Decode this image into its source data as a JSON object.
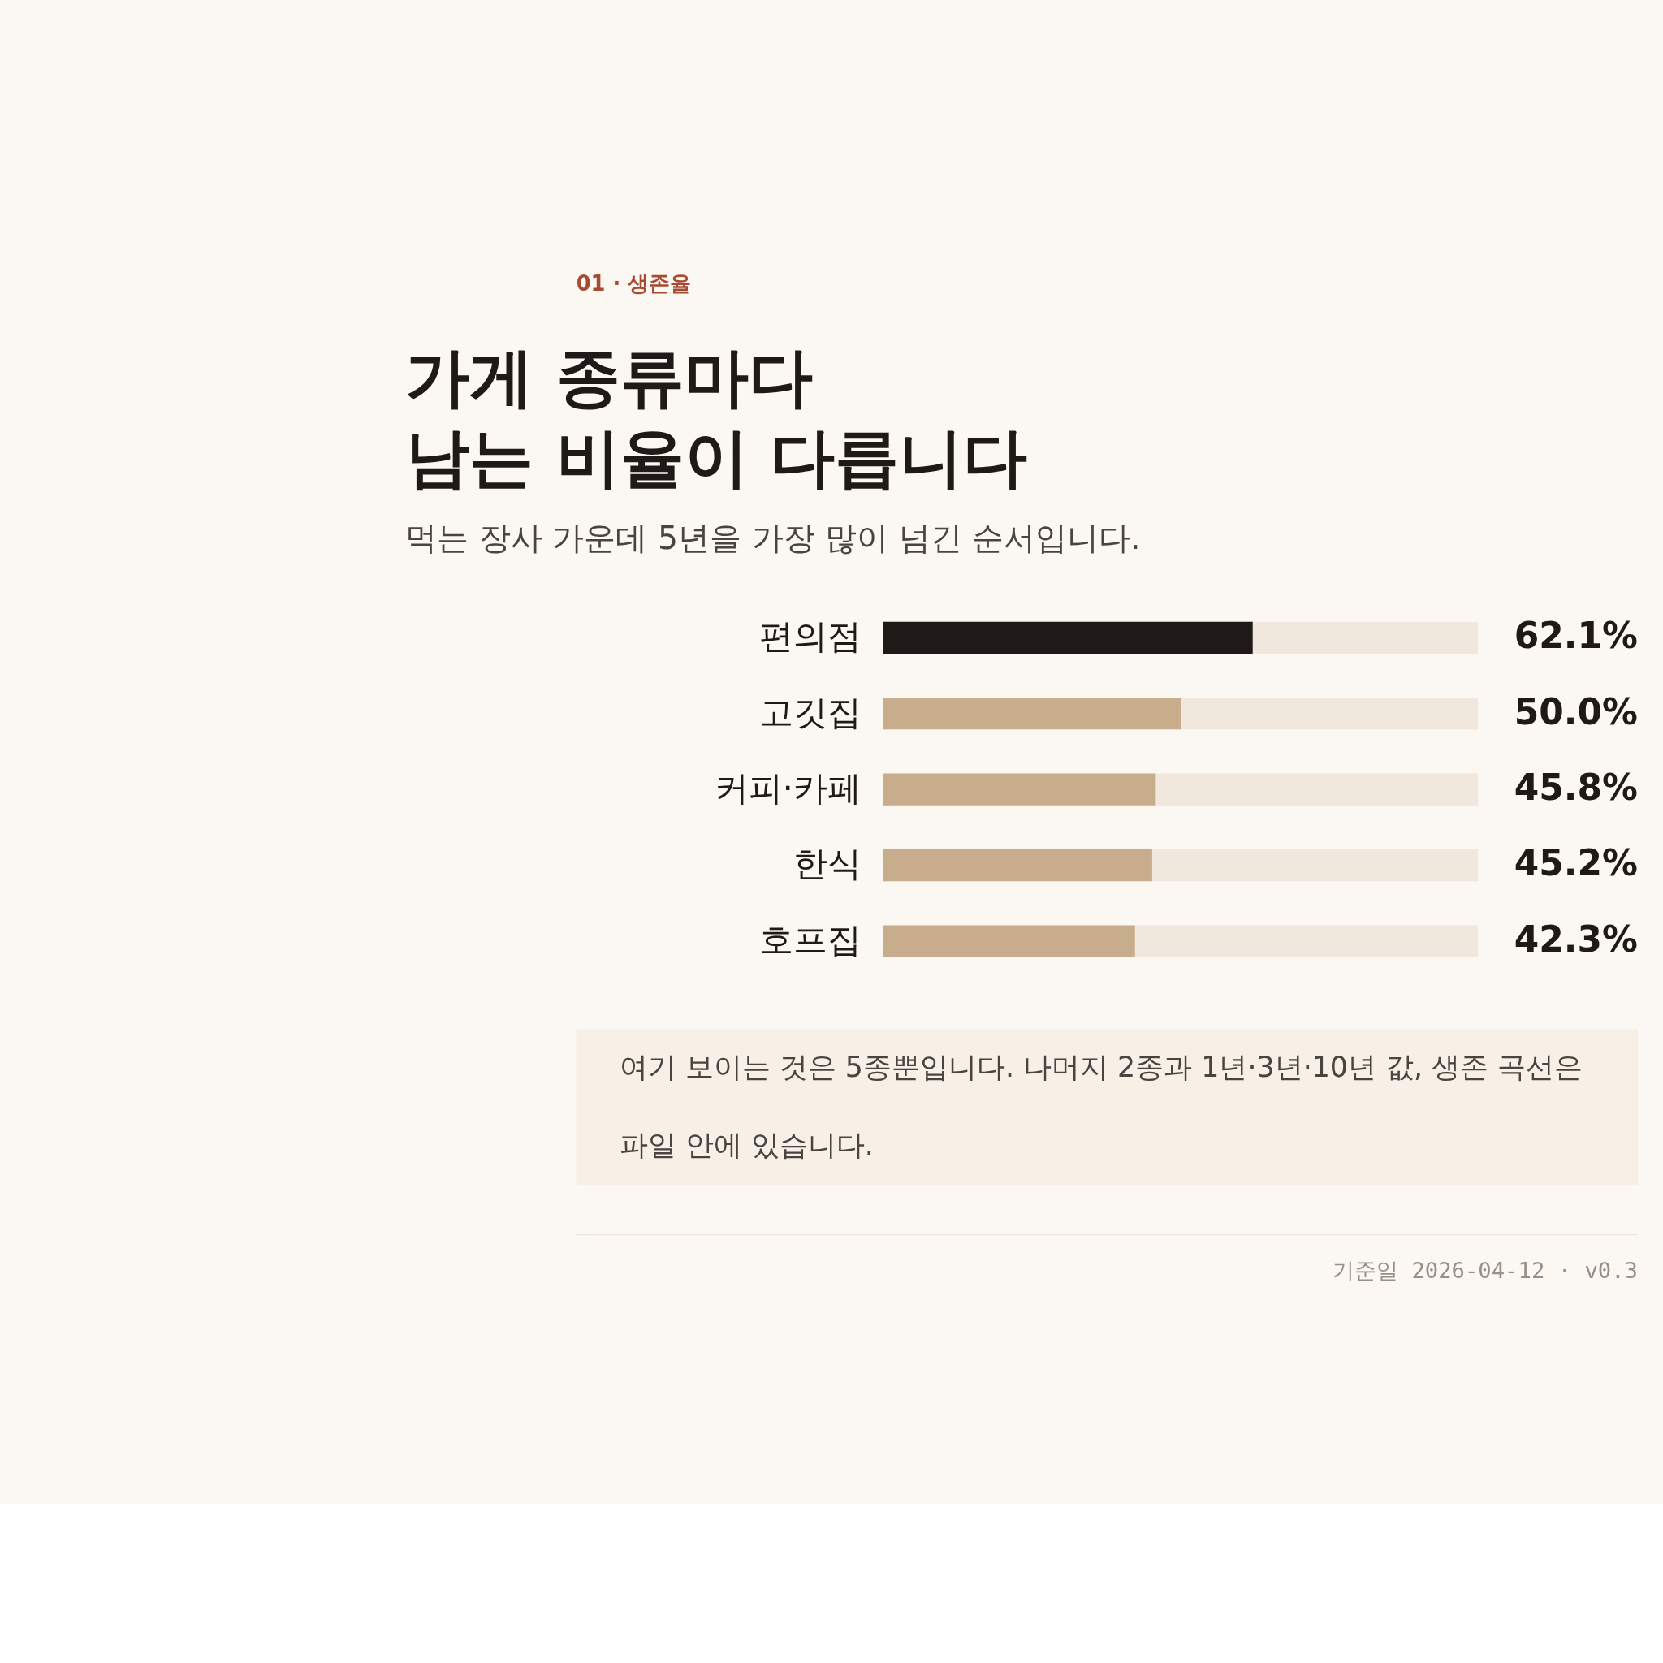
{
  "chart_data": {
    "type": "bar",
    "orientation": "horizontal",
    "title": [
      "가게 종류마다",
      "남는 비율이 다릅니다"
    ],
    "subtitle": "먹는 장사 가운데 5년을 가장 많이 넘긴 순서입니다.",
    "categories": [
      "편의점",
      "고깃집",
      "커피·카페",
      "한식",
      "호프집"
    ],
    "values": [
      62.1,
      50.0,
      45.8,
      45.2,
      42.3
    ],
    "value_labels": [
      "62.1%",
      "50.0%",
      "45.8%",
      "45.2%",
      "42.3%"
    ],
    "colors": [
      "#1f1a17",
      "#c8ad8c",
      "#c8ad8c",
      "#c8ad8c",
      "#c8ad8c"
    ],
    "xlim": [
      0,
      100
    ],
    "grid": false,
    "tick_labels": "y",
    "annotations": [
      "01 · 생존율",
      "여기 보이는 것은 5종뿐입니다. 나머지 2종과 1년·3년·10년 값, 생존 곡선은 파일 안에 있습니다.",
      "기준일 2026-04-12 · v0.3"
    ]
  }
}
